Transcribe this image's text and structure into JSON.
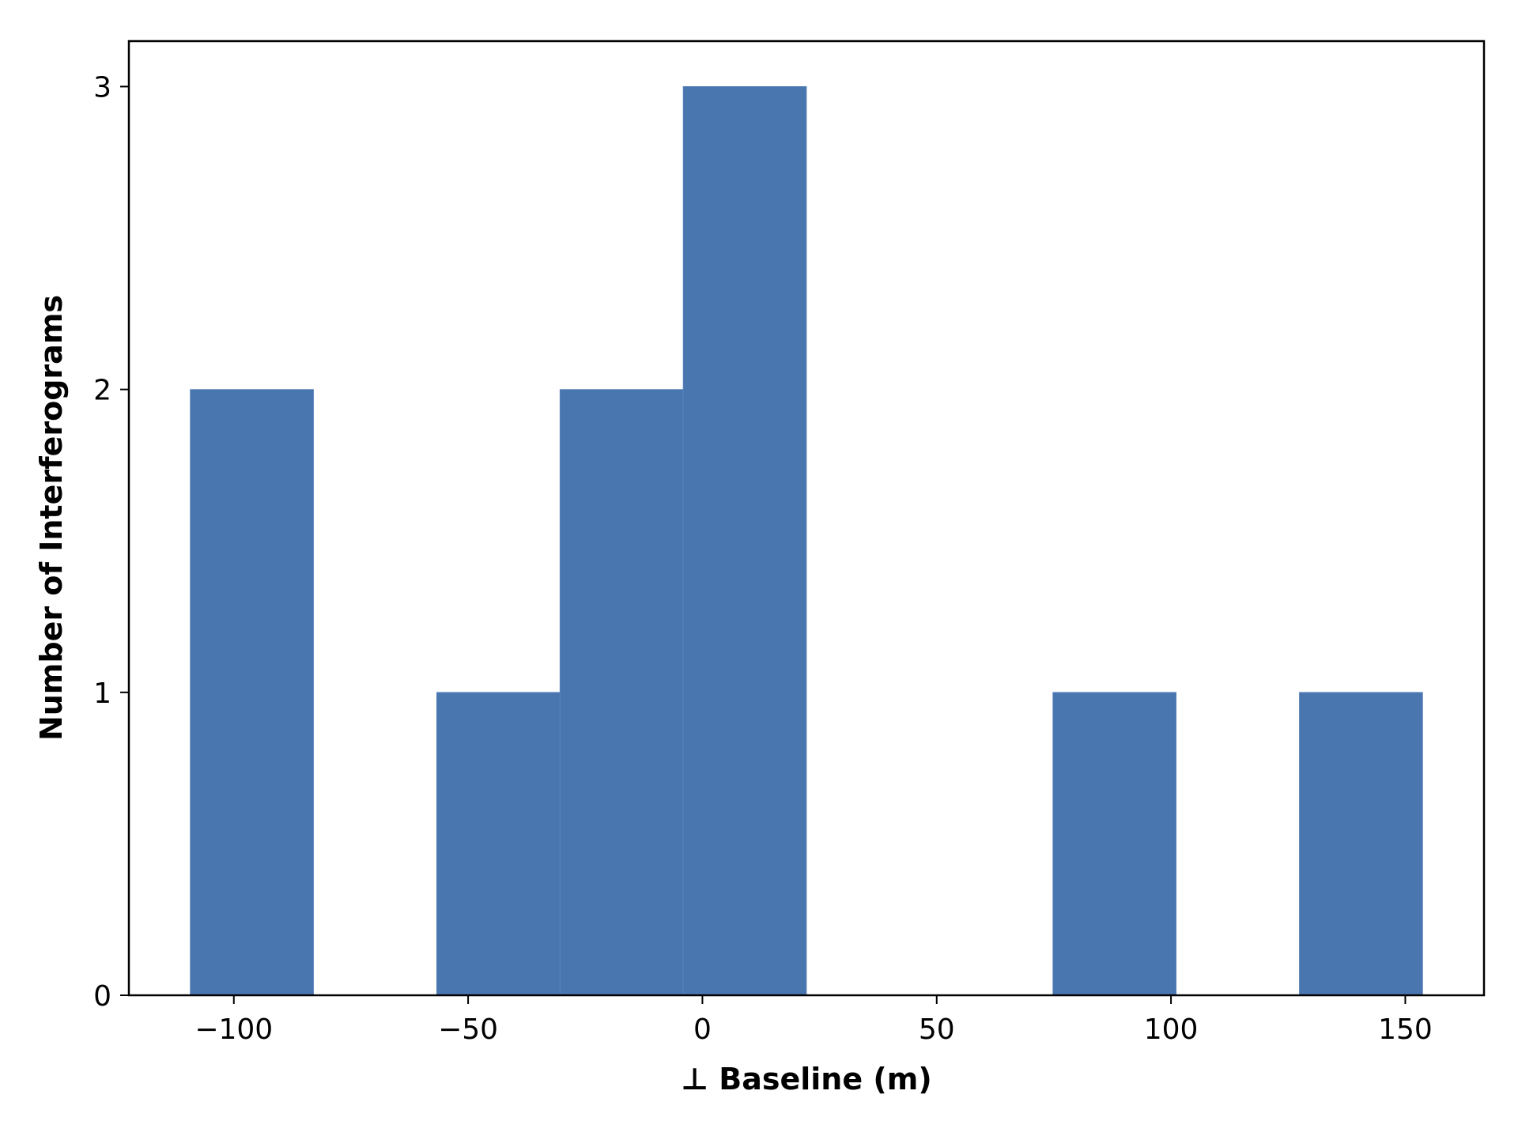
{
  "chart_data": {
    "type": "bar",
    "title": "",
    "xlabel": "⊥ Baseline (m)",
    "ylabel": "Number of Interferograms",
    "bin_width": 26.3,
    "bins": [
      {
        "start": -109.3,
        "end": -83.0,
        "count": 2
      },
      {
        "start": -83.0,
        "end": -56.7,
        "count": 0
      },
      {
        "start": -56.7,
        "end": -30.4,
        "count": 1
      },
      {
        "start": -30.4,
        "end": -4.1,
        "count": 2
      },
      {
        "start": -4.1,
        "end": 22.2,
        "count": 3
      },
      {
        "start": 22.2,
        "end": 48.5,
        "count": 0
      },
      {
        "start": 48.5,
        "end": 74.8,
        "count": 0
      },
      {
        "start": 74.8,
        "end": 101.1,
        "count": 1
      },
      {
        "start": 101.1,
        "end": 127.4,
        "count": 0
      },
      {
        "start": 127.4,
        "end": 153.7,
        "count": 1
      }
    ],
    "xlim": [
      -122.4,
      166.8
    ],
    "ylim": [
      0,
      3.15
    ],
    "xticks": [
      -100,
      -50,
      0,
      50,
      100,
      150
    ],
    "xtick_labels": [
      "−100",
      "−50",
      "0",
      "50",
      "100",
      "150"
    ],
    "yticks": [
      0,
      1,
      2,
      3
    ],
    "ytick_labels": [
      "0",
      "1",
      "2",
      "3"
    ],
    "bar_color": "#4a76af",
    "grid": false,
    "legend": "none"
  }
}
